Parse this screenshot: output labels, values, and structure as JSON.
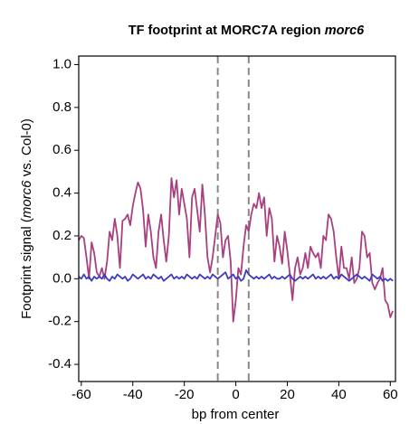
{
  "chart_data": {
    "type": "line",
    "title": [
      "TF footprint at MORC7A region",
      "morc6"
    ],
    "ylabel": [
      "Footprint signal (",
      "morc6",
      " vs. Col-0)"
    ],
    "xlabel": "bp from center",
    "x": [
      -61,
      -60,
      -59,
      -58,
      -57,
      -56,
      -55,
      -54,
      -53,
      -52,
      -51,
      -50,
      -49,
      -48,
      -47,
      -46,
      -45,
      -44,
      -43,
      -42,
      -41,
      -40,
      -39,
      -38,
      -37,
      -36,
      -35,
      -34,
      -33,
      -32,
      -31,
      -30,
      -29,
      -28,
      -27,
      -26,
      -25,
      -24,
      -23,
      -22,
      -21,
      -20,
      -19,
      -18,
      -17,
      -16,
      -15,
      -14,
      -13,
      -12,
      -11,
      -10,
      -9,
      -8,
      -7,
      -6,
      -5,
      -4,
      -3,
      -2,
      -1,
      0,
      1,
      2,
      3,
      4,
      5,
      6,
      7,
      8,
      9,
      10,
      11,
      12,
      13,
      14,
      15,
      16,
      17,
      18,
      19,
      20,
      21,
      22,
      23,
      24,
      25,
      26,
      27,
      28,
      29,
      30,
      31,
      32,
      33,
      34,
      35,
      36,
      37,
      38,
      39,
      40,
      41,
      42,
      43,
      44,
      45,
      46,
      47,
      48,
      49,
      50,
      51,
      52,
      53,
      54,
      55,
      56,
      57,
      58,
      59,
      60,
      61
    ],
    "series": [
      {
        "color": "#a8407f",
        "values": [
          0.18,
          0.2,
          0.19,
          0.1,
          0.0,
          0.17,
          0.12,
          0.03,
          0.01,
          0.05,
          0.0,
          0.08,
          0.22,
          0.18,
          0.28,
          0.2,
          0.05,
          0.27,
          0.28,
          0.3,
          0.25,
          0.34,
          0.4,
          0.45,
          0.42,
          0.32,
          0.15,
          0.3,
          0.22,
          0.1,
          0.05,
          0.22,
          0.3,
          0.18,
          0.08,
          0.2,
          0.47,
          0.38,
          0.46,
          0.3,
          0.42,
          0.35,
          0.28,
          0.1,
          0.38,
          0.42,
          0.32,
          0.22,
          0.44,
          0.3,
          0.1,
          0.03,
          0.1,
          0.2,
          0.3,
          0.26,
          0.1,
          0.18,
          0.2,
          0.08,
          -0.2,
          -0.1,
          0.05,
          0.02,
          0.15,
          0.25,
          0.22,
          0.3,
          0.35,
          0.33,
          0.4,
          0.33,
          0.38,
          0.2,
          0.33,
          0.28,
          0.08,
          0.2,
          0.15,
          0.07,
          0.22,
          0.13,
          0.02,
          -0.1,
          0.05,
          0.1,
          0.02,
          0.05,
          0.12,
          0.05,
          0.15,
          0.12,
          0.1,
          0.12,
          0.05,
          0.2,
          0.18,
          0.3,
          0.28,
          0.22,
          0.1,
          0.0,
          0.15,
          0.05,
          0.05,
          0.0,
          0.1,
          -0.02,
          0.0,
          0.05,
          0.22,
          0.2,
          0.1,
          0.12,
          -0.02,
          -0.05,
          -0.02,
          0.0,
          0.05,
          -0.1,
          -0.12,
          -0.18,
          -0.15
        ]
      },
      {
        "color": "#3b3bc4",
        "values": [
          0.01,
          0.0,
          0.02,
          0.0,
          0.01,
          -0.01,
          0.01,
          0.0,
          0.01,
          0.0,
          0.02,
          0.0,
          -0.01,
          0.01,
          0.0,
          0.02,
          0.01,
          0.0,
          0.01,
          -0.01,
          0.0,
          0.02,
          0.01,
          0.0,
          0.01,
          0.02,
          0.0,
          0.01,
          0.0,
          0.02,
          0.01,
          0.0,
          0.01,
          -0.01,
          0.0,
          0.01,
          0.02,
          0.0,
          0.01,
          0.0,
          0.01,
          0.0,
          0.02,
          0.01,
          0.0,
          0.01,
          0.0,
          0.02,
          0.01,
          0.0,
          0.01,
          0.0,
          0.02,
          0.01,
          0.0,
          0.01,
          0.02,
          0.03,
          0.0,
          0.01,
          0.02,
          0.0,
          0.01,
          -0.01,
          0.0,
          0.04,
          0.02,
          0.01,
          0.0,
          0.01,
          0.0,
          0.01,
          0.0,
          0.01,
          0.02,
          0.0,
          0.01,
          0.0,
          0.0,
          0.01,
          0.0,
          0.01,
          0.02,
          0.0,
          -0.01,
          0.0,
          0.01,
          0.0,
          0.01,
          0.0,
          0.01,
          0.02,
          0.0,
          0.01,
          0.0,
          0.01,
          0.0,
          0.01,
          0.02,
          0.0,
          0.01,
          0.0,
          0.02,
          0.01,
          0.0,
          -0.01,
          0.0,
          0.01,
          0.02,
          0.01,
          0.0,
          0.01,
          0.0,
          -0.01,
          0.02,
          0.01,
          0.0,
          0.01,
          -0.01,
          0.0,
          -0.01,
          0.0,
          -0.01
        ]
      }
    ],
    "vlines": [
      -7,
      5
    ],
    "vline_color": "#888888",
    "xlim": [
      -61,
      62
    ],
    "xticks": [
      -60,
      -40,
      -20,
      0,
      20,
      40,
      60
    ],
    "ylim": [
      -0.48,
      1.04
    ],
    "yticks": [
      -0.4,
      -0.2,
      {
        "value": 0,
        "label": "0.0"
      },
      0.2,
      0.4,
      0.6,
      0.8,
      {
        "value": 1,
        "label": "1.0"
      }
    ]
  }
}
